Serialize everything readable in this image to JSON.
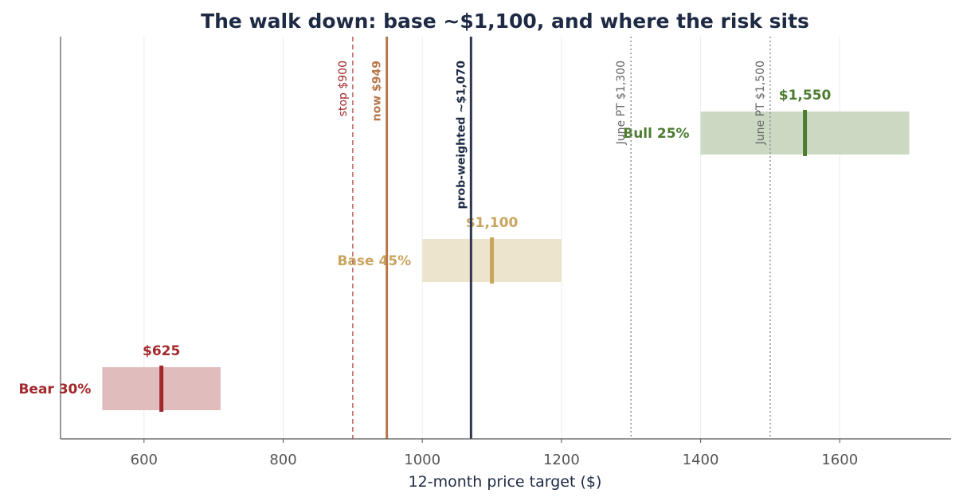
{
  "chart_data": {
    "type": "bar",
    "orientation": "horizontal-range",
    "title": "The walk down: base ~$1,100, and where the risk sits",
    "xlabel": "12-month price target ($)",
    "ylabel": "",
    "xlim": [
      480,
      1760
    ],
    "xticks": [
      600,
      800,
      1000,
      1200,
      1400,
      1600
    ],
    "xtick_labels": [
      "600",
      "800",
      "1000",
      "1200",
      "1400",
      "1600"
    ],
    "grid": "vertical",
    "scenarios": [
      {
        "name": "Bear 30%",
        "low": 540,
        "high": 710,
        "target": 625,
        "target_label": "$625",
        "color": "#a3282b",
        "fill": "#e0bcbc"
      },
      {
        "name": "Base 45%",
        "low": 1000,
        "high": 1200,
        "target": 1100,
        "target_label": "$1,100",
        "color": "#c9a560",
        "fill": "#ede4ce"
      },
      {
        "name": "Bull 25%",
        "low": 1400,
        "high": 1700,
        "target": 1550,
        "target_label": "$1,550",
        "color": "#4d7c30",
        "fill": "#cbd9c3"
      }
    ],
    "reference_lines": [
      {
        "label": "stop $900",
        "value": 900,
        "style": "dashed",
        "color": "#c46b6b",
        "text_color": "#a3282b",
        "bold": false
      },
      {
        "label": "now $949",
        "value": 949,
        "style": "solid",
        "color": "#b8774a",
        "text_color": "#b8774a",
        "bold": true
      },
      {
        "label": "prob-weighted ~$1,070",
        "value": 1070,
        "style": "solid",
        "color": "#2e3650",
        "text_color": "#1e2a44",
        "bold": true
      },
      {
        "label": "June PT $1,300",
        "value": 1300,
        "style": "dotted",
        "color": "#999999",
        "text_color": "#666666",
        "bold": false
      },
      {
        "label": "June PT $1,500",
        "value": 1500,
        "style": "dotted",
        "color": "#999999",
        "text_color": "#666666",
        "bold": false
      }
    ]
  }
}
